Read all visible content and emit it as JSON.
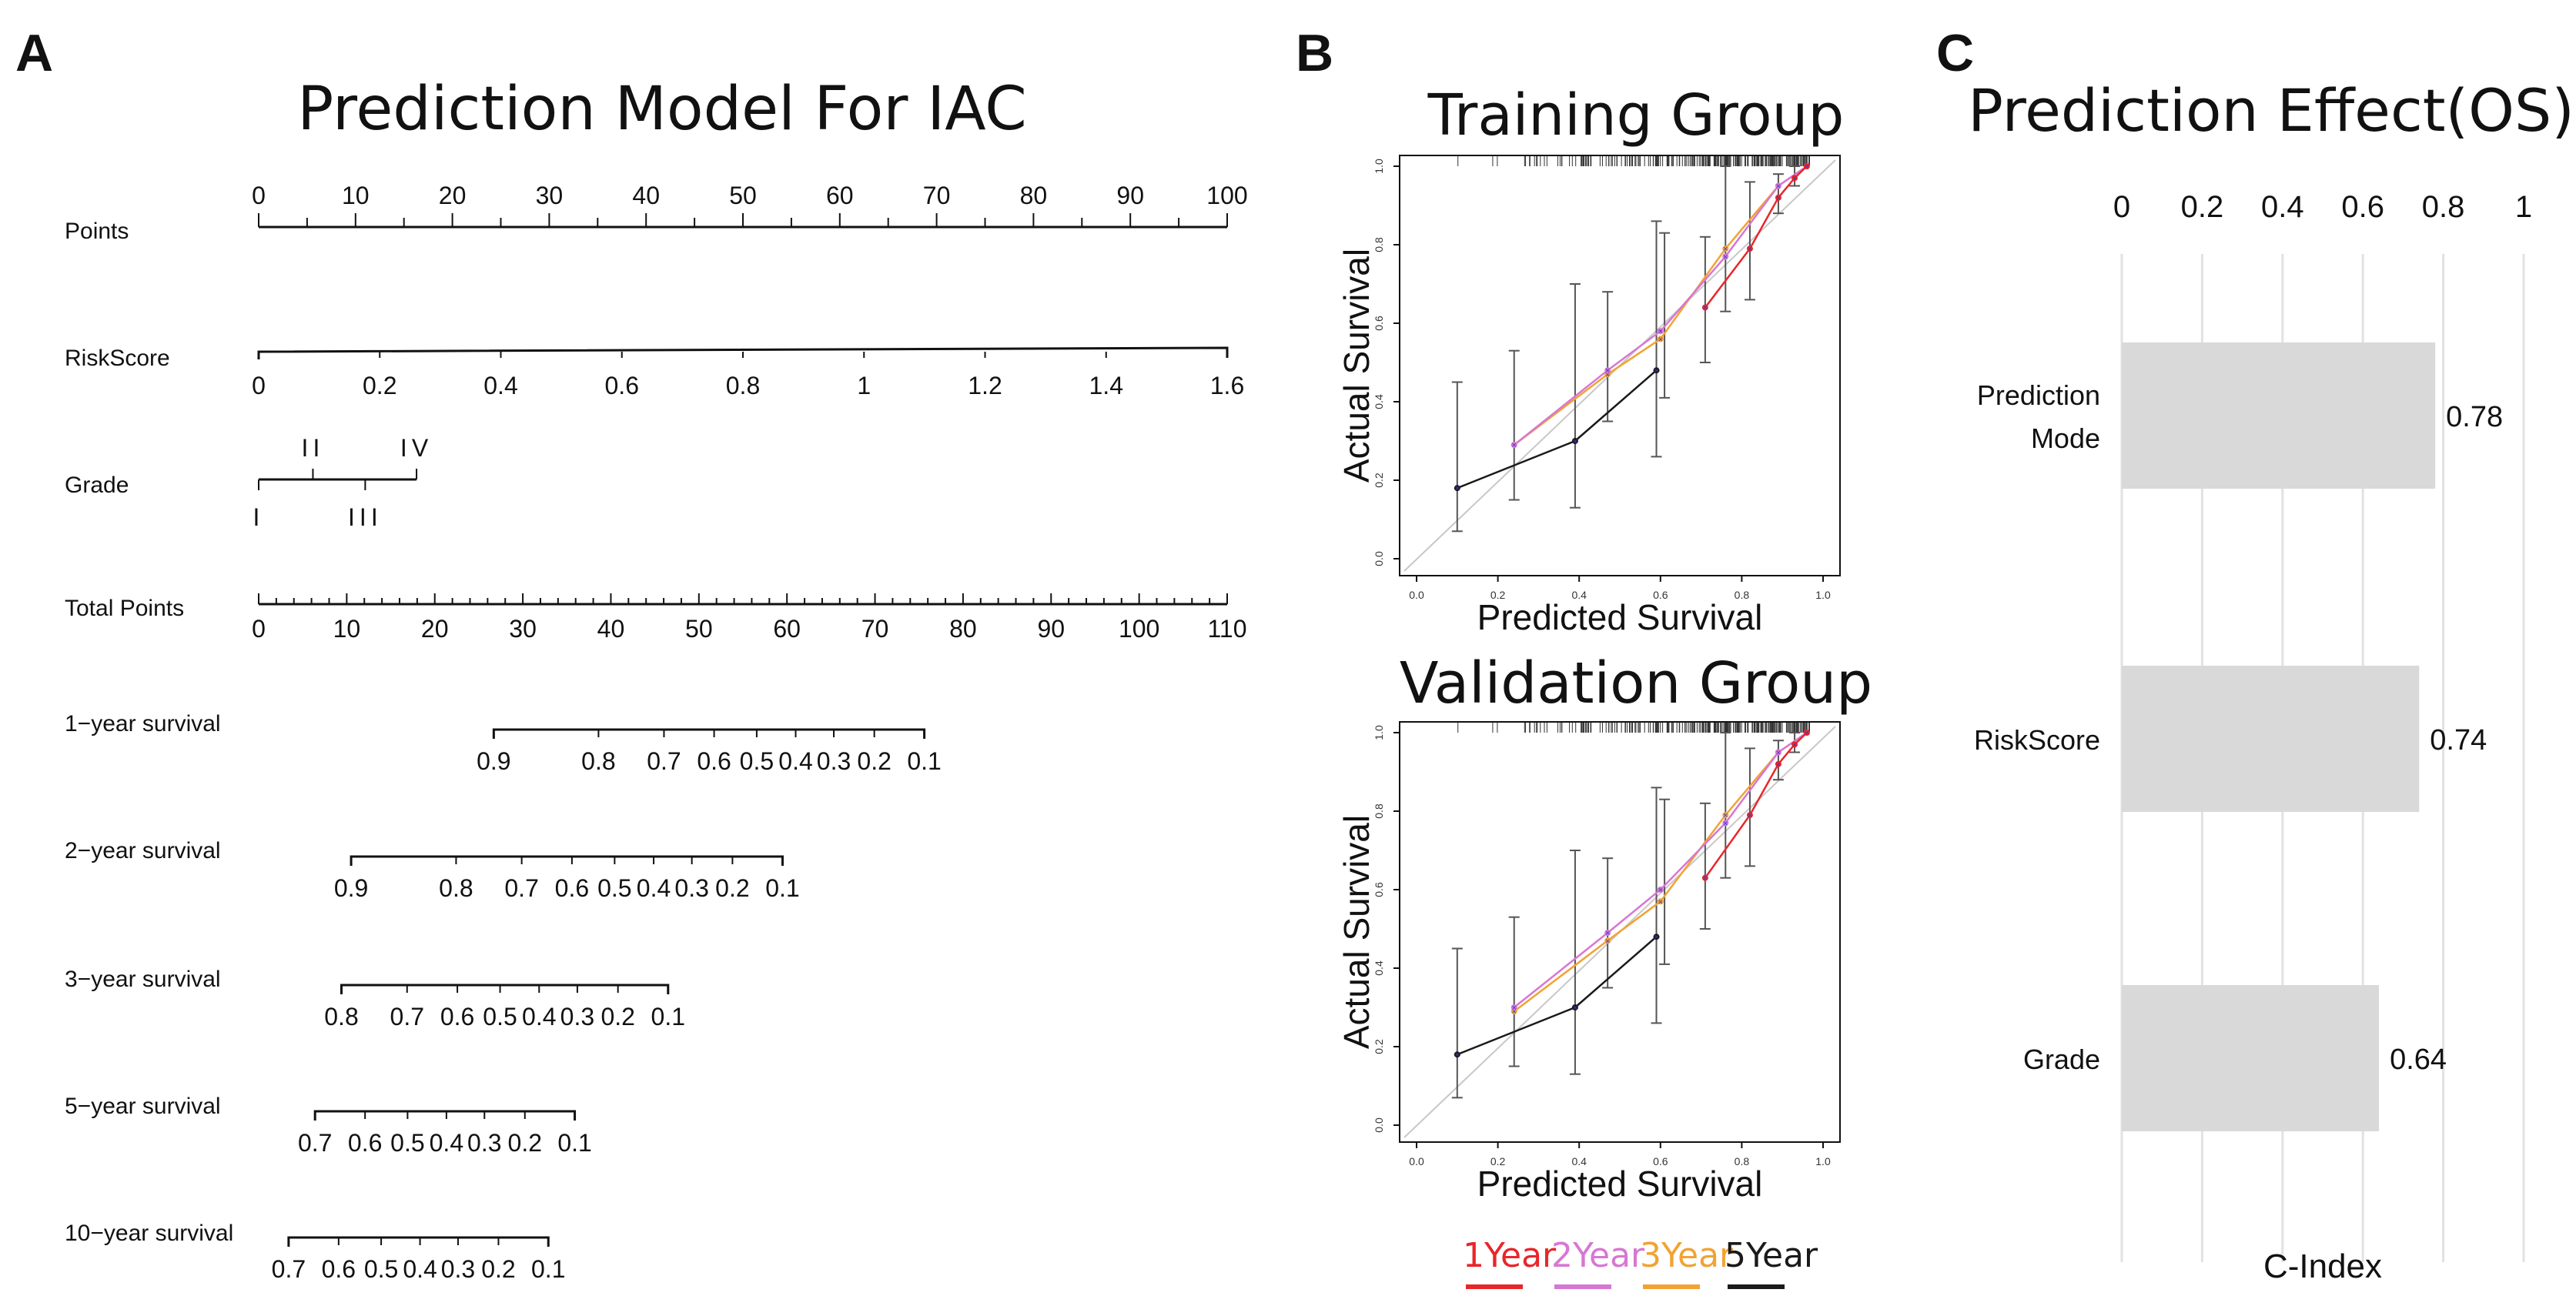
{
  "chart_data": [
    {
      "panel": "A",
      "type": "nomogram",
      "title": "Prediction Model For IAC",
      "scales": [
        {
          "label": "Points",
          "ticks": [
            "0",
            "10",
            "20",
            "30",
            "40",
            "50",
            "60",
            "70",
            "80",
            "90",
            "100"
          ],
          "range": [
            0,
            100
          ]
        },
        {
          "label": "RiskScore",
          "ticks": [
            "0",
            "0.2",
            "0.4",
            "0.6",
            "0.8",
            "1",
            "1.2",
            "1.4",
            "1.6"
          ],
          "range": [
            0,
            1.6
          ],
          "points_range": [
            0,
            100
          ]
        },
        {
          "label": "Grade",
          "categories_top": [
            "II",
            "IV"
          ],
          "categories_bottom": [
            "I",
            "III"
          ],
          "points": {
            "I": 0,
            "II": 5.6,
            "III": 11,
            "IV": 16.3
          }
        },
        {
          "label": "Total Points",
          "ticks": [
            "0",
            "10",
            "20",
            "30",
            "40",
            "50",
            "60",
            "70",
            "80",
            "90",
            "100",
            "110"
          ],
          "range": [
            0,
            110
          ]
        },
        {
          "label": "1−year survival",
          "ticks": [
            "0.9",
            "0.8",
            "0.7",
            "0.6",
            "0.5",
            "0.4",
            "0.3",
            "0.2",
            "0.1"
          ],
          "total_points_range": [
            26.7,
            75.6
          ]
        },
        {
          "label": "2−year survival",
          "ticks": [
            "0.9",
            "0.8",
            "0.7",
            "0.6",
            "0.5",
            "0.4",
            "0.3",
            "0.2",
            "0.1"
          ],
          "total_points_range": [
            10.5,
            59.5
          ]
        },
        {
          "label": "3−year survival",
          "ticks": [
            "0.8",
            "0.7",
            "0.6",
            "0.5",
            "0.4",
            "0.3",
            "0.2",
            "0.1"
          ],
          "total_points_range": [
            9.4,
            46.5
          ]
        },
        {
          "label": "5−year survival",
          "ticks": [
            "0.7",
            "0.6",
            "0.5",
            "0.4",
            "0.3",
            "0.2",
            "0.1"
          ],
          "total_points_range": [
            6.4,
            35.9
          ]
        },
        {
          "label": "10−year survival",
          "ticks": [
            "0.7",
            "0.6",
            "0.5",
            "0.4",
            "0.3",
            "0.2",
            "0.1"
          ],
          "total_points_range": [
            3.4,
            32.9
          ]
        }
      ]
    },
    {
      "panel": "B",
      "type": "line",
      "subplots": [
        {
          "title": "Training Group",
          "xlabel": "Predicted Survival",
          "ylabel": "Actual Survival",
          "xlim": [
            0,
            1
          ],
          "ylim": [
            0,
            1
          ],
          "xticks": [
            "0.0",
            "0.2",
            "0.4",
            "0.6",
            "0.8",
            "1.0"
          ],
          "yticks": [
            "0.0",
            "0.2",
            "0.4",
            "0.6",
            "0.8",
            "1.0"
          ],
          "series": [
            {
              "name": "1Year",
              "color": "#e8262a",
              "x": [
                0.71,
                0.82,
                0.89,
                0.93,
                0.96
              ],
              "y": [
                0.64,
                0.79,
                0.92,
                0.97,
                1.0
              ]
            },
            {
              "name": "2Year",
              "color": "#d777d3",
              "x": [
                0.24,
                0.47,
                0.6,
                0.76,
                0.89,
                0.96
              ],
              "y": [
                0.29,
                0.48,
                0.58,
                0.77,
                0.95,
                1.0
              ]
            },
            {
              "name": "3Year",
              "color": "#f1a333",
              "x": [
                0.24,
                0.47,
                0.6,
                0.76,
                0.89,
                0.96
              ],
              "y": [
                0.29,
                0.47,
                0.56,
                0.79,
                0.95,
                1.0
              ]
            },
            {
              "name": "5Year",
              "color": "#1a1a1a",
              "x": [
                0.1,
                0.39,
                0.59
              ],
              "y": [
                0.18,
                0.3,
                0.48
              ]
            }
          ],
          "error_bars": [
            {
              "x": 0.1,
              "low": 0.07,
              "high": 0.45
            },
            {
              "x": 0.24,
              "low": 0.15,
              "high": 0.53
            },
            {
              "x": 0.39,
              "low": 0.13,
              "high": 0.7
            },
            {
              "x": 0.47,
              "low": 0.35,
              "high": 0.68
            },
            {
              "x": 0.59,
              "low": 0.26,
              "high": 0.86
            },
            {
              "x": 0.61,
              "low": 0.41,
              "high": 0.83
            },
            {
              "x": 0.71,
              "low": 0.5,
              "high": 0.82
            },
            {
              "x": 0.76,
              "low": 0.63,
              "high": 1.0
            },
            {
              "x": 0.82,
              "low": 0.66,
              "high": 0.96
            },
            {
              "x": 0.89,
              "low": 0.88,
              "high": 0.98
            },
            {
              "x": 0.93,
              "low": 0.95,
              "high": 1.0
            }
          ]
        },
        {
          "title": "Validation Group",
          "xlabel": "Predicted Survival",
          "ylabel": "Actual Survival",
          "xlim": [
            0,
            1
          ],
          "ylim": [
            0,
            1
          ],
          "xticks": [
            "0.0",
            "0.2",
            "0.4",
            "0.6",
            "0.8",
            "1.0"
          ],
          "yticks": [
            "0.0",
            "0.2",
            "0.4",
            "0.6",
            "0.8",
            "1.0"
          ],
          "series": [
            {
              "name": "1Year",
              "color": "#e8262a",
              "x": [
                0.71,
                0.82,
                0.89,
                0.93,
                0.96
              ],
              "y": [
                0.63,
                0.79,
                0.92,
                0.97,
                1.0
              ]
            },
            {
              "name": "2Year",
              "color": "#d777d3",
              "x": [
                0.24,
                0.47,
                0.6,
                0.76,
                0.89,
                0.96
              ],
              "y": [
                0.3,
                0.49,
                0.6,
                0.77,
                0.95,
                1.0
              ]
            },
            {
              "name": "3Year",
              "color": "#f1a333",
              "x": [
                0.24,
                0.47,
                0.6,
                0.76,
                0.89,
                0.96
              ],
              "y": [
                0.29,
                0.47,
                0.57,
                0.79,
                0.95,
                1.0
              ]
            },
            {
              "name": "5Year",
              "color": "#1a1a1a",
              "x": [
                0.1,
                0.39,
                0.59
              ],
              "y": [
                0.18,
                0.3,
                0.48
              ]
            }
          ],
          "error_bars": [
            {
              "x": 0.1,
              "low": 0.07,
              "high": 0.45
            },
            {
              "x": 0.24,
              "low": 0.15,
              "high": 0.53
            },
            {
              "x": 0.39,
              "low": 0.13,
              "high": 0.7
            },
            {
              "x": 0.47,
              "low": 0.35,
              "high": 0.68
            },
            {
              "x": 0.59,
              "low": 0.26,
              "high": 0.86
            },
            {
              "x": 0.61,
              "low": 0.41,
              "high": 0.83
            },
            {
              "x": 0.71,
              "low": 0.5,
              "high": 0.82
            },
            {
              "x": 0.76,
              "low": 0.63,
              "high": 1.0
            },
            {
              "x": 0.82,
              "low": 0.66,
              "high": 0.96
            },
            {
              "x": 0.89,
              "low": 0.88,
              "high": 0.98
            },
            {
              "x": 0.93,
              "low": 0.95,
              "high": 1.0
            }
          ]
        }
      ],
      "legend": [
        {
          "label": "1Year",
          "color": "#e8262a"
        },
        {
          "label": "2Year",
          "color": "#d777d3"
        },
        {
          "label": "3Year",
          "color": "#f1a333"
        },
        {
          "label": "5Year",
          "color": "#1a1a1a"
        }
      ]
    },
    {
      "panel": "C",
      "type": "bar",
      "orientation": "horizontal",
      "title": "Prediction Effect(OS)",
      "xlabel": "C-Index",
      "xlim": [
        0,
        1
      ],
      "xticks": [
        "0",
        "0.2",
        "0.4",
        "0.6",
        "0.8",
        "1"
      ],
      "categories": [
        "Prediction\nMode",
        "RiskScore",
        "Grade"
      ],
      "values": [
        0.78,
        0.74,
        0.64
      ],
      "labels": [
        "0.78",
        "0.74",
        "0.64"
      ],
      "bar_color": "#d9d9d9"
    }
  ],
  "panel_letters": [
    "A",
    "B",
    "C"
  ]
}
